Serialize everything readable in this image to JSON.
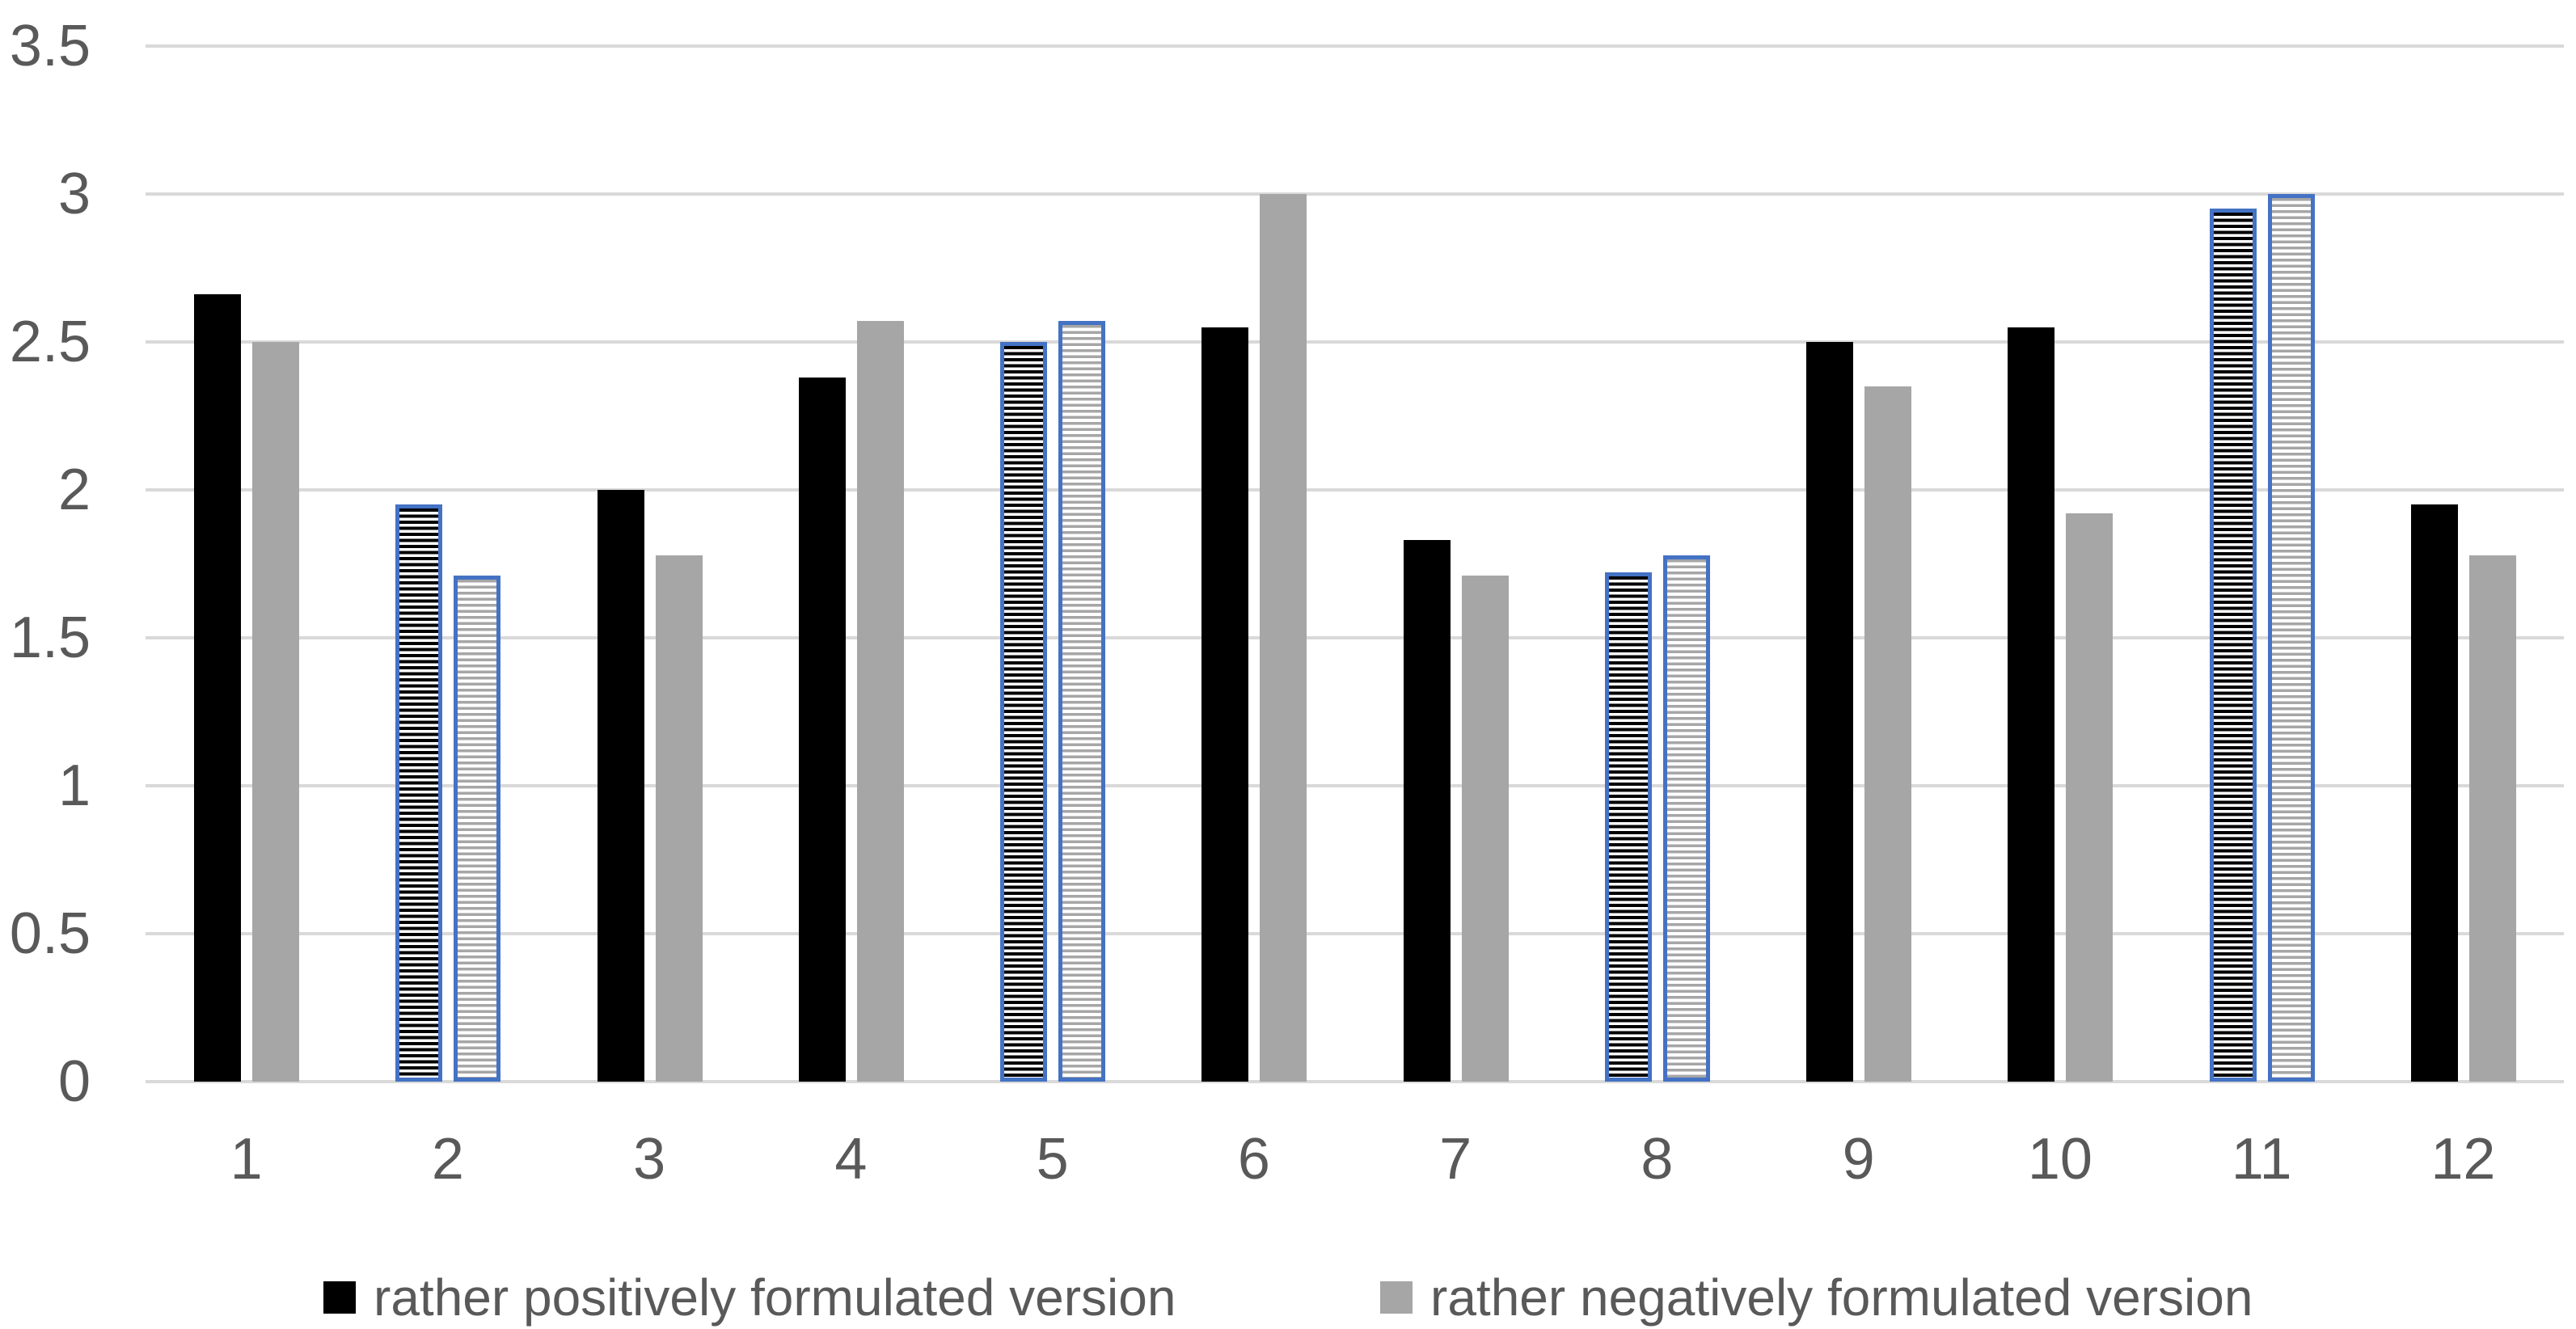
{
  "chart_data": {
    "type": "bar",
    "title": "",
    "xlabel": "",
    "ylabel": "",
    "categories": [
      "1",
      "2",
      "3",
      "4",
      "5",
      "6",
      "7",
      "8",
      "9",
      "10",
      "11",
      "12"
    ],
    "series": [
      {
        "name": "rather positively formulated version",
        "color": "#000000",
        "values": [
          2.66,
          1.95,
          2.0,
          2.38,
          2.5,
          2.55,
          1.83,
          1.72,
          2.5,
          2.55,
          2.95,
          1.95
        ]
      },
      {
        "name": "rather negatively formulated version",
        "color": "#a6a6a6",
        "values": [
          2.5,
          1.71,
          1.78,
          2.57,
          2.57,
          3.0,
          1.71,
          1.78,
          2.35,
          1.92,
          3.0,
          1.78
        ]
      }
    ],
    "hatched_categories": [
      "2",
      "5",
      "8",
      "11"
    ],
    "hatch_style": "horizontal stripes on white fill with blue border",
    "ylim": [
      0,
      3.5
    ],
    "ytick_labels": [
      "0",
      "0.5",
      "1",
      "1.5",
      "2",
      "2.5",
      "3",
      "3.5"
    ],
    "grid": true,
    "legend_position": "bottom"
  },
  "colors": {
    "background": "#ffffff",
    "gridline": "#d9d9d9",
    "axis_text": "#595959",
    "bar_black": "#000000",
    "bar_gray": "#a6a6a6",
    "hatch_border_blue": "#4472c4",
    "hatch_background": "#ffffff"
  }
}
